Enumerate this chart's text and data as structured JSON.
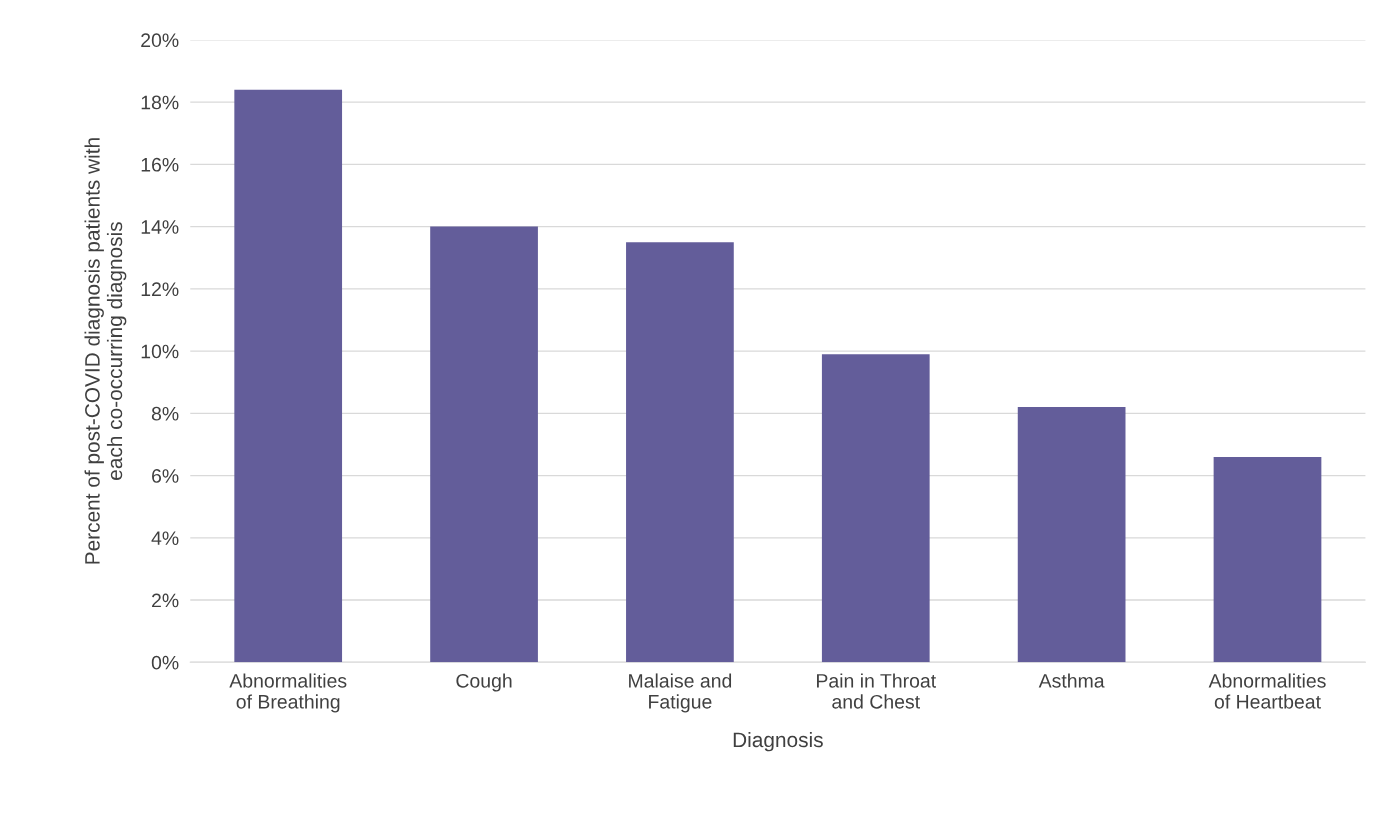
{
  "chart_data": {
    "type": "bar",
    "xlabel": "Diagnosis",
    "ylabel": "Percent of post-COVID diagnosis patients with\neach co-occurring diagnosis",
    "categories": [
      "Abnormalities\nof Breathing",
      "Cough",
      "Malaise and\nFatigue",
      "Pain in Throat\nand Chest",
      "Asthma",
      "Abnormalities\nof Heartbeat"
    ],
    "values": [
      18.4,
      14.0,
      13.5,
      9.9,
      8.2,
      6.6
    ],
    "color": "#635d9a",
    "ylim": [
      0,
      20
    ],
    "yticks": [
      {
        "value": 0,
        "label": "0%"
      },
      {
        "value": 2,
        "label": "2%"
      },
      {
        "value": 4,
        "label": "4%"
      },
      {
        "value": 6,
        "label": "6%"
      },
      {
        "value": 8,
        "label": "8%"
      },
      {
        "value": 10,
        "label": "10%"
      },
      {
        "value": 12,
        "label": "12%"
      },
      {
        "value": 14,
        "label": "14%"
      },
      {
        "value": 16,
        "label": "16%"
      },
      {
        "value": 18,
        "label": "18%"
      },
      {
        "value": 20,
        "label": "20%"
      }
    ],
    "grid": "y"
  }
}
